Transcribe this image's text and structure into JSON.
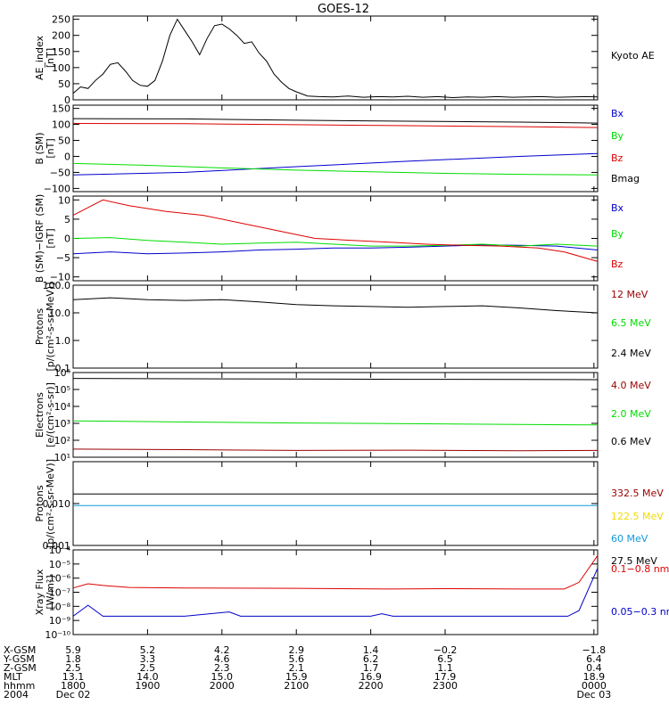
{
  "title": "GOES-12",
  "colors": {
    "black": "#000000",
    "blue": "#0000cc",
    "green": "#00dd00",
    "red": "#dd0000",
    "darkred": "#990000",
    "cyan": "#1199dd",
    "yellow": "#eedd00"
  },
  "chart_data": [
    {
      "type": "line",
      "id": "ae",
      "ylabel": [
        "AE_index",
        "[nT]"
      ],
      "ylim": [
        0,
        260
      ],
      "yticks": [
        0,
        50,
        100,
        150,
        200,
        250
      ],
      "ytick_labels": [
        "0",
        "50",
        "100",
        "150",
        "200",
        "250"
      ],
      "series": [
        {
          "name": "Kyoto AE",
          "color": "black",
          "points": [
            [
              0,
              20
            ],
            [
              0.2,
              40
            ],
            [
              0.4,
              35
            ],
            [
              0.6,
              60
            ],
            [
              0.8,
              80
            ],
            [
              1.0,
              110
            ],
            [
              1.2,
              115
            ],
            [
              1.4,
              90
            ],
            [
              1.6,
              60
            ],
            [
              1.8,
              45
            ],
            [
              2.0,
              42
            ],
            [
              2.2,
              60
            ],
            [
              2.4,
              120
            ],
            [
              2.6,
              200
            ],
            [
              2.8,
              250
            ],
            [
              3.0,
              215
            ],
            [
              3.2,
              180
            ],
            [
              3.4,
              140
            ],
            [
              3.6,
              190
            ],
            [
              3.8,
              230
            ],
            [
              4.0,
              235
            ],
            [
              4.2,
              220
            ],
            [
              4.4,
              200
            ],
            [
              4.6,
              175
            ],
            [
              4.8,
              180
            ],
            [
              5.0,
              145
            ],
            [
              5.2,
              120
            ],
            [
              5.4,
              80
            ],
            [
              5.6,
              55
            ],
            [
              5.8,
              35
            ],
            [
              6.0,
              25
            ],
            [
              6.3,
              12
            ],
            [
              6.6,
              10
            ],
            [
              7.0,
              9
            ],
            [
              7.4,
              12
            ],
            [
              7.8,
              8
            ],
            [
              8.2,
              10
            ],
            [
              8.6,
              9
            ],
            [
              9.0,
              11
            ],
            [
              9.4,
              8
            ],
            [
              9.8,
              10
            ],
            [
              10.2,
              7
            ],
            [
              10.6,
              9
            ],
            [
              11.0,
              8
            ],
            [
              11.4,
              10
            ],
            [
              11.8,
              8
            ],
            [
              12.2,
              9
            ],
            [
              12.6,
              10
            ],
            [
              13.0,
              8
            ],
            [
              13.4,
              9
            ],
            [
              13.8,
              10
            ],
            [
              14.1,
              9
            ]
          ]
        }
      ]
    },
    {
      "type": "line",
      "id": "bsm",
      "ylabel": [
        "B (SM)",
        "[nT]"
      ],
      "ylim": [
        -110,
        160
      ],
      "yticks": [
        -100,
        -50,
        0,
        50,
        100,
        150
      ],
      "ytick_labels": [
        "−100",
        "−50",
        "0",
        "50",
        "100",
        "150"
      ],
      "series": [
        {
          "name": "Bx",
          "color": "blue",
          "points": [
            [
              0,
              -58
            ],
            [
              3,
              -50
            ],
            [
              6,
              -32
            ],
            [
              9,
              -15
            ],
            [
              12,
              0
            ],
            [
              14.1,
              9
            ]
          ]
        },
        {
          "name": "By",
          "color": "green",
          "points": [
            [
              0,
              -22
            ],
            [
              2,
              -28
            ],
            [
              4,
              -36
            ],
            [
              6,
              -43
            ],
            [
              8,
              -48
            ],
            [
              10,
              -53
            ],
            [
              12,
              -56
            ],
            [
              14.1,
              -58
            ]
          ]
        },
        {
          "name": "Bz",
          "color": "red",
          "points": [
            [
              0,
              103
            ],
            [
              3,
              102
            ],
            [
              6,
              99
            ],
            [
              9,
              96
            ],
            [
              12,
              93
            ],
            [
              14.1,
              90
            ]
          ]
        },
        {
          "name": "Bmag",
          "color": "black",
          "points": [
            [
              0,
              118
            ],
            [
              3,
              117
            ],
            [
              6,
              113
            ],
            [
              9,
              110
            ],
            [
              12,
              107
            ],
            [
              14.1,
              104
            ]
          ]
        }
      ]
    },
    {
      "type": "line",
      "id": "bdiff",
      "ylabel": [
        "B (SM)−IGRF (SM)",
        "[nT]"
      ],
      "ylim": [
        -11,
        11
      ],
      "yticks": [
        -10,
        -5,
        0,
        5,
        10
      ],
      "ytick_labels": [
        "−10",
        "−5",
        "0",
        "5",
        "10"
      ],
      "series": [
        {
          "name": "Bx",
          "color": "blue",
          "points": [
            [
              0,
              -4
            ],
            [
              1,
              -3.5
            ],
            [
              2,
              -4
            ],
            [
              3,
              -3.8
            ],
            [
              4,
              -3.5
            ],
            [
              5,
              -3
            ],
            [
              6,
              -2.8
            ],
            [
              7,
              -2.5
            ],
            [
              8,
              -2.5
            ],
            [
              9,
              -2.3
            ],
            [
              10,
              -2
            ],
            [
              11,
              -1.7
            ],
            [
              12,
              -1.8
            ],
            [
              13,
              -2
            ],
            [
              14.1,
              -3
            ]
          ]
        },
        {
          "name": "By",
          "color": "green",
          "points": [
            [
              0,
              0
            ],
            [
              1,
              0.2
            ],
            [
              2,
              -0.5
            ],
            [
              3,
              -1
            ],
            [
              4,
              -1.5
            ],
            [
              5,
              -1.2
            ],
            [
              6,
              -1
            ],
            [
              7,
              -1.5
            ],
            [
              8,
              -2
            ],
            [
              9,
              -2
            ],
            [
              10,
              -1.8
            ],
            [
              11,
              -1.5
            ],
            [
              12,
              -2
            ],
            [
              13,
              -1.5
            ],
            [
              14.1,
              -2
            ]
          ]
        },
        {
          "name": "Bz",
          "color": "red",
          "points": [
            [
              0,
              6
            ],
            [
              0.8,
              10
            ],
            [
              1.5,
              8.5
            ],
            [
              2.5,
              7
            ],
            [
              3.5,
              6
            ],
            [
              4.5,
              4
            ],
            [
              5.5,
              2
            ],
            [
              6.5,
              0
            ],
            [
              7.5,
              -0.5
            ],
            [
              8.5,
              -1
            ],
            [
              9.5,
              -1.5
            ],
            [
              10.5,
              -1.8
            ],
            [
              11.5,
              -2
            ],
            [
              12.5,
              -2.5
            ],
            [
              13.2,
              -3.5
            ],
            [
              14.1,
              -6
            ]
          ]
        }
      ]
    },
    {
      "type": "line",
      "id": "protons1",
      "log": true,
      "ylabel": [
        "Protons",
        "[p/(cm²-s-sr-MeV)]"
      ],
      "ylim": [
        0.1,
        100
      ],
      "yticks": [
        0.1,
        1,
        10,
        100
      ],
      "ytick_labels": [
        "0.1",
        "1.0",
        "10.0",
        "100.0"
      ],
      "series": [
        {
          "name": "12 MeV",
          "color": "darkred",
          "points": []
        },
        {
          "name": "6.5 MeV",
          "color": "green",
          "points": []
        },
        {
          "name": "2.4 MeV",
          "color": "black",
          "points": [
            [
              0,
              30
            ],
            [
              1,
              35
            ],
            [
              2,
              30
            ],
            [
              3,
              28
            ],
            [
              4,
              30
            ],
            [
              5,
              25
            ],
            [
              6,
              20
            ],
            [
              7,
              18
            ],
            [
              8,
              17
            ],
            [
              9,
              16
            ],
            [
              10,
              17
            ],
            [
              11,
              18
            ],
            [
              12,
              15
            ],
            [
              13,
              12
            ],
            [
              14.1,
              10
            ]
          ]
        }
      ]
    },
    {
      "type": "line",
      "id": "electrons",
      "log": true,
      "ylabel": [
        "Electrons",
        "[e/(cm²-s-sr)]"
      ],
      "ylim": [
        10,
        1000000
      ],
      "yticks": [
        10,
        100,
        1000,
        10000,
        100000,
        1000000
      ],
      "ytick_labels": [
        "10¹",
        "10²",
        "10³",
        "10⁴",
        "10⁵",
        "10⁶"
      ],
      "series": [
        {
          "name": "4.0 MeV",
          "color": "darkred",
          "points": [
            [
              0,
              30
            ],
            [
              3,
              28
            ],
            [
              6,
              25
            ],
            [
              9,
              26
            ],
            [
              12,
              24
            ],
            [
              14.1,
              25
            ]
          ]
        },
        {
          "name": "2.0 MeV",
          "color": "green",
          "points": [
            [
              0,
              1400
            ],
            [
              3,
              1200
            ],
            [
              6,
              1050
            ],
            [
              9,
              950
            ],
            [
              12,
              850
            ],
            [
              14.1,
              800
            ]
          ]
        },
        {
          "name": "0.6 MeV",
          "color": "black",
          "points": [
            [
              0,
              450000
            ],
            [
              3,
              430000
            ],
            [
              6,
              420000
            ],
            [
              9,
              400000
            ],
            [
              12,
              390000
            ],
            [
              14.1,
              380000
            ]
          ]
        }
      ]
    },
    {
      "type": "line",
      "id": "protons2",
      "log": true,
      "ylabel": [
        "Protons",
        "[p/(cm²-s-sr-MeV)]"
      ],
      "ylim": [
        0.001,
        0.1
      ],
      "yticks": [
        0.001,
        0.01
      ],
      "ytick_labels": [
        "0.001",
        "0.010"
      ],
      "series": [
        {
          "name": "332.5 MeV",
          "color": "darkred",
          "points": []
        },
        {
          "name": "122.5 MeV",
          "color": "yellow",
          "points": []
        },
        {
          "name": "60 MeV",
          "color": "cyan",
          "points": [
            [
              0,
              0.009
            ],
            [
              14.1,
              0.009
            ]
          ]
        },
        {
          "name": "27.5 MeV",
          "color": "black",
          "points": [
            [
              0,
              0.017
            ],
            [
              14.1,
              0.017
            ]
          ]
        }
      ]
    },
    {
      "type": "line",
      "id": "xray",
      "log": true,
      "ylabel": [
        "Xray Flux",
        "[W/m²]"
      ],
      "ylim": [
        1e-10,
        0.0001
      ],
      "yticks": [
        1e-10,
        1e-09,
        1e-08,
        1e-07,
        1e-06,
        1e-05,
        0.0001
      ],
      "ytick_labels": [
        "10⁻¹⁰",
        "10⁻⁹",
        "10⁻⁸",
        "10⁻⁷",
        "10⁻⁶",
        "10⁻⁵",
        "10⁻⁴"
      ],
      "series": [
        {
          "name": "0.1−0.8 nm",
          "color": "red",
          "points": [
            [
              0,
              2e-07
            ],
            [
              0.4,
              4e-07
            ],
            [
              0.8,
              3e-07
            ],
            [
              1.5,
              2.2e-07
            ],
            [
              3,
              2e-07
            ],
            [
              6,
              1.9e-07
            ],
            [
              8.5,
              1.7e-07
            ],
            [
              10,
              1.8e-07
            ],
            [
              12,
              1.7e-07
            ],
            [
              13.2,
              1.7e-07
            ],
            [
              13.6,
              5e-07
            ],
            [
              14.1,
              4e-05
            ]
          ]
        },
        {
          "name": "0.05−0.3 nm",
          "color": "blue",
          "points": [
            [
              0,
              2e-09
            ],
            [
              0.4,
              1.2e-08
            ],
            [
              0.8,
              2e-09
            ],
            [
              3,
              2e-09
            ],
            [
              4.2,
              4e-09
            ],
            [
              4.5,
              2e-09
            ],
            [
              8,
              2e-09
            ],
            [
              8.3,
              3e-09
            ],
            [
              8.6,
              2e-09
            ],
            [
              13.3,
              2e-09
            ],
            [
              13.6,
              5e-09
            ],
            [
              14.1,
              5e-06
            ]
          ]
        }
      ]
    }
  ],
  "x_axis": {
    "xlim": [
      0,
      14.1
    ],
    "row_labels": [
      "X-GSM",
      "Y-GSM",
      "Z-GSM",
      "MLT",
      "hhmm",
      "2004"
    ],
    "columns": [
      {
        "x": 0.0,
        "values": [
          "5.9",
          "1.8",
          "2.5",
          "13.1",
          "1800",
          "Dec 02"
        ]
      },
      {
        "x": 2.0,
        "values": [
          "5.2",
          "3.3",
          "2.5",
          "14.0",
          "1900",
          ""
        ]
      },
      {
        "x": 4.0,
        "values": [
          "4.2",
          "4.6",
          "2.3",
          "15.0",
          "2000",
          ""
        ]
      },
      {
        "x": 6.0,
        "values": [
          "2.9",
          "5.6",
          "2.1",
          "15.9",
          "2100",
          ""
        ]
      },
      {
        "x": 8.0,
        "values": [
          "1.4",
          "6.2",
          "1.7",
          "16.9",
          "2200",
          ""
        ]
      },
      {
        "x": 10.0,
        "values": [
          "−0.2",
          "6.5",
          "1.1",
          "17.9",
          "2300",
          ""
        ]
      },
      {
        "x": 14.0,
        "values": [
          "−1.8",
          "6.4",
          "0.4",
          "18.9",
          "0000",
          "Dec 03"
        ]
      }
    ]
  }
}
